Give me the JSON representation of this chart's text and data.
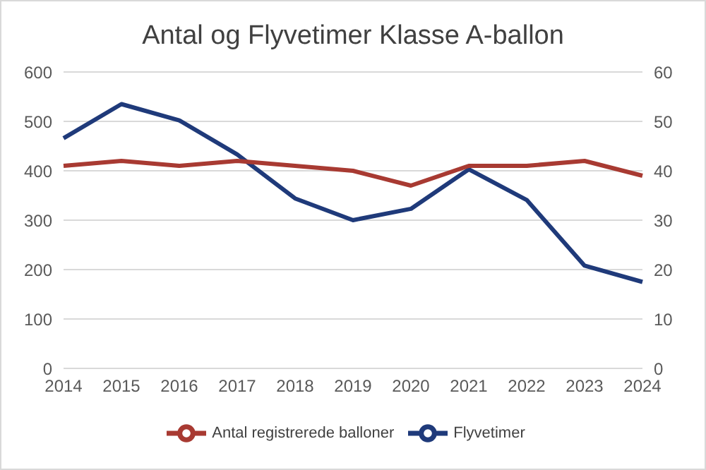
{
  "chart_data": {
    "type": "line",
    "title": "Antal og Flyvetimer Klasse A-ballon",
    "categories": [
      "2014",
      "2015",
      "2016",
      "2017",
      "2018",
      "2019",
      "2020",
      "2021",
      "2022",
      "2023",
      "2024"
    ],
    "series": [
      {
        "name": "Flyvetimer",
        "color": "#1f3a7a",
        "values": [
          466,
          535,
          502,
          433,
          344,
          300,
          323,
          403,
          341,
          208,
          175
        ]
      },
      {
        "name": "Antal registrerede balloner",
        "color": "#a83a32",
        "axis": "y2",
        "values": [
          41,
          42,
          41,
          42,
          41,
          40,
          37,
          41,
          41,
          42,
          39
        ]
      }
    ],
    "ylim": [
      0,
      600
    ],
    "yticks": [
      0,
      100,
      200,
      300,
      400,
      500,
      600
    ],
    "y2lim": [
      0,
      60
    ],
    "y2ticks": [
      0,
      10,
      20,
      30,
      40,
      50,
      60
    ],
    "grid": "y",
    "legend": "bottom",
    "marker": "none",
    "line_style": "solid"
  }
}
